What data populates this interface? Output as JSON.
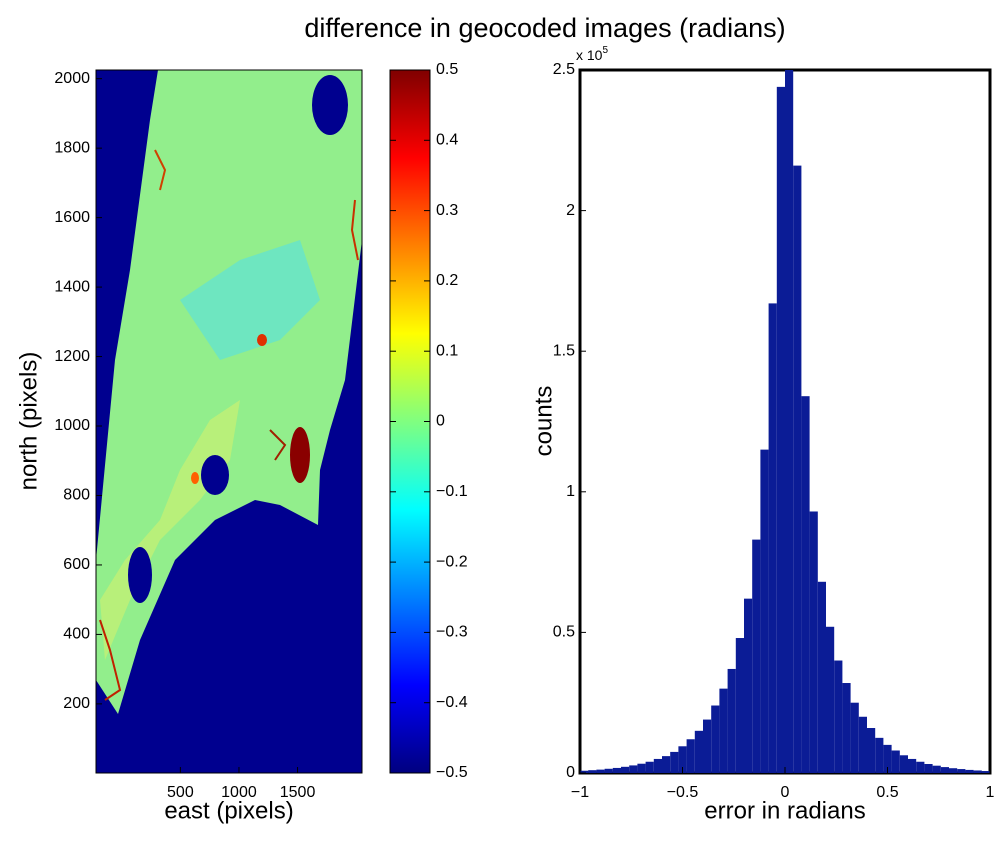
{
  "title": "difference in geocoded images (radians)",
  "chart_data": [
    {
      "type": "heatmap",
      "xlabel": "east (pixels)",
      "ylabel": "north (pixels)",
      "xlim": [
        -220,
        2050
      ],
      "xticks": [
        500,
        1000,
        1500
      ],
      "ylim": [
        1,
        2025
      ],
      "yticks": [
        200,
        400,
        600,
        800,
        1000,
        1200,
        1400,
        1600,
        1800,
        2000
      ],
      "colormap": "jet",
      "clim": [
        -0.5,
        0.5
      ],
      "cticks": [
        {
          "value": -0.5,
          "label": "−0.5"
        },
        {
          "value": -0.4,
          "label": "−0.4"
        },
        {
          "value": -0.3,
          "label": "−0.3"
        },
        {
          "value": -0.2,
          "label": "−0.2"
        },
        {
          "value": -0.1,
          "label": "−0.1"
        },
        0,
        0.1,
        0.2,
        0.3,
        0.4,
        0.5
      ]
    },
    {
      "type": "histogram",
      "xlabel": "error in radians",
      "ylabel": "counts",
      "color": "#0b1c96",
      "bins": [
        -1,
        -0.96,
        -0.92,
        -0.88,
        -0.84,
        -0.8,
        -0.76,
        -0.72,
        -0.68,
        -0.64,
        -0.6,
        -0.56,
        -0.52,
        -0.48,
        -0.44,
        -0.4,
        -0.36,
        -0.32,
        -0.28,
        -0.24,
        -0.2,
        -0.16,
        -0.12,
        -0.08,
        -0.04,
        0,
        0.04,
        0.08,
        0.12,
        0.16,
        0.2,
        0.24,
        0.28,
        0.32,
        0.36,
        0.4,
        0.44,
        0.48,
        0.52,
        0.56,
        0.6,
        0.64,
        0.68,
        0.72,
        0.76,
        0.8,
        0.84,
        0.88,
        0.92,
        0.96,
        1
      ],
      "counts": [
        800,
        1000,
        1200,
        1500,
        1800,
        2200,
        2700,
        3300,
        4000,
        5000,
        6000,
        7500,
        9500,
        12000,
        15000,
        19000,
        24000,
        30000,
        37000,
        48000,
        62000,
        83000,
        115000,
        167000,
        244000,
        250000,
        216000,
        134000,
        93000,
        68000,
        52000,
        40000,
        32000,
        25000,
        20000,
        16000,
        12500,
        10000,
        8000,
        6300,
        5000,
        4000,
        3200,
        2600,
        2100,
        1700,
        1400,
        1100,
        900,
        700
      ],
      "xlim": [
        -1,
        1
      ],
      "xticks": [
        {
          "value": -1,
          "label": "−1"
        },
        {
          "value": -0.5,
          "label": "−0.5"
        },
        0,
        0.5,
        1
      ],
      "ylim": [
        0,
        250000
      ],
      "yticks": [
        0,
        {
          "value": 50000,
          "label": "0.5"
        },
        {
          "value": 100000,
          "label": "1"
        },
        {
          "value": 150000,
          "label": "1.5"
        },
        {
          "value": 200000,
          "label": "2"
        },
        {
          "value": 250000,
          "label": "2.5"
        }
      ],
      "y_multiplier": {
        "base": "x 10",
        "power": "5"
      }
    }
  ]
}
